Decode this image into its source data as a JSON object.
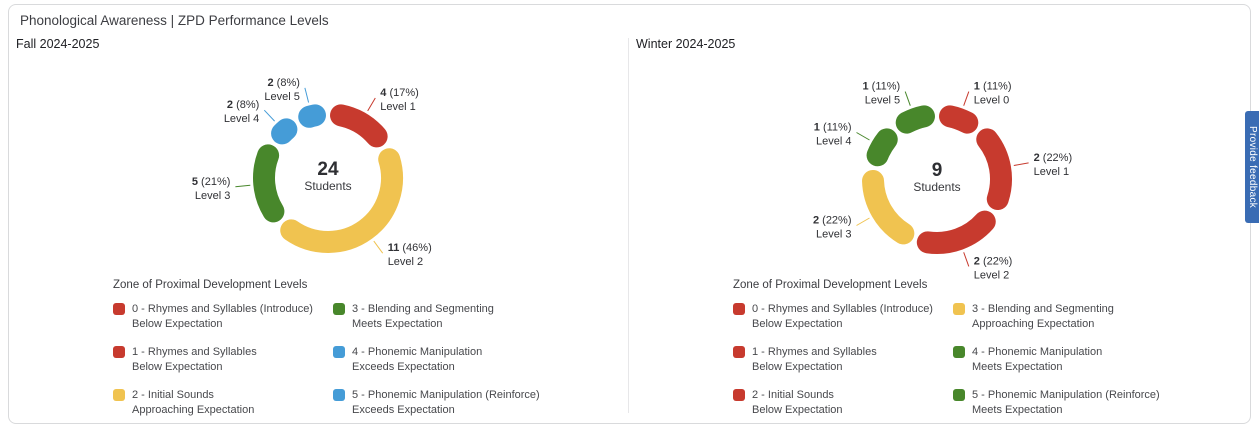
{
  "page_title": "Phonological Awareness | ZPD Performance Levels",
  "feedback_button": {
    "label": "Provide feedback",
    "color": "#3a6cb4"
  },
  "palette": {
    "below_expectation": "#c73a2e",
    "approaching_expectation": "#f0c350",
    "meets_expectation": "#48872b",
    "exceeds_expectation": "#459cd7"
  },
  "chart_data": [
    {
      "type": "pie",
      "subtype": "donut",
      "title": "Fall 2024-2025",
      "center_value": "24",
      "center_label": "Students",
      "slices": [
        {
          "label": "Level 1",
          "count": 4,
          "percent": 17,
          "color": "#c73a2e"
        },
        {
          "label": "Level 2",
          "count": 11,
          "percent": 46,
          "color": "#f0c350"
        },
        {
          "label": "Level 3",
          "count": 5,
          "percent": 21,
          "color": "#48872b"
        },
        {
          "label": "Level 4",
          "count": 2,
          "percent": 8,
          "color": "#459cd7"
        },
        {
          "label": "Level 5",
          "count": 2,
          "percent": 8,
          "color": "#459cd7"
        }
      ],
      "legend": {
        "title": "Zone of Proximal Development Levels",
        "items": [
          {
            "color": "#c73a2e",
            "line1": "0 - Rhymes and Syllables (Introduce)",
            "line2": "Below Expectation"
          },
          {
            "color": "#c73a2e",
            "line1": "1 - Rhymes and Syllables",
            "line2": "Below Expectation"
          },
          {
            "color": "#f0c350",
            "line1": "2 - Initial Sounds",
            "line2": "Approaching Expectation"
          },
          {
            "color": "#48872b",
            "line1": "3 - Blending and Segmenting",
            "line2": "Meets Expectation"
          },
          {
            "color": "#459cd7",
            "line1": "4 - Phonemic Manipulation",
            "line2": "Exceeds Expectation"
          },
          {
            "color": "#459cd7",
            "line1": "5 - Phonemic Manipulation (Reinforce)",
            "line2": "Exceeds Expectation"
          }
        ]
      }
    },
    {
      "type": "pie",
      "subtype": "donut",
      "title": "Winter 2024-2025",
      "center_value": "9",
      "center_label": "Students",
      "slices": [
        {
          "label": "Level 0",
          "count": 1,
          "percent": 11,
          "color": "#c73a2e"
        },
        {
          "label": "Level 1",
          "count": 2,
          "percent": 22,
          "color": "#c73a2e"
        },
        {
          "label": "Level 2",
          "count": 2,
          "percent": 22,
          "color": "#c73a2e"
        },
        {
          "label": "Level 3",
          "count": 2,
          "percent": 22,
          "color": "#f0c350"
        },
        {
          "label": "Level 4",
          "count": 1,
          "percent": 11,
          "color": "#48872b"
        },
        {
          "label": "Level 5",
          "count": 1,
          "percent": 11,
          "color": "#48872b"
        }
      ],
      "legend": {
        "title": "Zone of Proximal Development Levels",
        "items": [
          {
            "color": "#c73a2e",
            "line1": "0 - Rhymes and Syllables (Introduce)",
            "line2": "Below Expectation"
          },
          {
            "color": "#c73a2e",
            "line1": "1 - Rhymes and Syllables",
            "line2": "Below Expectation"
          },
          {
            "color": "#c73a2e",
            "line1": "2 - Initial Sounds",
            "line2": "Below Expectation"
          },
          {
            "color": "#f0c350",
            "line1": "3 - Blending and Segmenting",
            "line2": "Approaching Expectation"
          },
          {
            "color": "#48872b",
            "line1": "4 - Phonemic Manipulation",
            "line2": "Meets Expectation"
          },
          {
            "color": "#48872b",
            "line1": "5 - Phonemic Manipulation (Reinforce)",
            "line2": "Meets Expectation"
          }
        ]
      }
    }
  ]
}
